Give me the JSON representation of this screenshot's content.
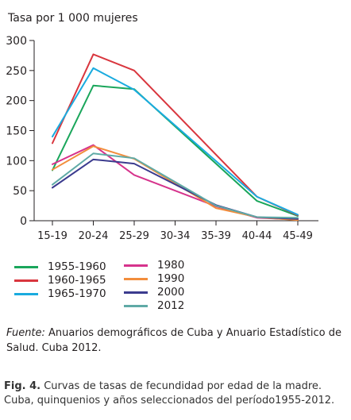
{
  "chart_data": {
    "type": "line",
    "ylabel": "Tasa por 1 000 mujeres",
    "xlabel": "",
    "categories": [
      "15-19",
      "20-24",
      "25-29",
      "30-34",
      "35-39",
      "40-44",
      "45-49"
    ],
    "ylim": [
      0,
      300
    ],
    "yticks": [
      0,
      50,
      100,
      150,
      200,
      250,
      300
    ],
    "grid": false,
    "legend_position": "bottom",
    "series": [
      {
        "name": "1955-1960",
        "color": "#1aa65b",
        "values": [
          84,
          225,
          219,
          null,
          null,
          33,
          8
        ]
      },
      {
        "name": "1960-1965",
        "color": "#d9363e",
        "values": [
          129,
          277,
          250,
          null,
          null,
          40,
          9
        ]
      },
      {
        "name": "1965-1970",
        "color": "#1aabdf",
        "values": [
          140,
          254,
          218,
          null,
          null,
          40,
          10
        ]
      },
      {
        "name": "1980",
        "color": "#d6338c",
        "values": [
          94,
          126,
          76,
          null,
          24,
          5,
          2
        ]
      },
      {
        "name": "1990",
        "color": "#f28d3c",
        "values": [
          85,
          124,
          103,
          null,
          21,
          6,
          1
        ]
      },
      {
        "name": "2000",
        "color": "#3b3b8e",
        "values": [
          55,
          102,
          95,
          null,
          26,
          6,
          3
        ]
      },
      {
        "name": "2012",
        "color": "#5faaa6",
        "values": [
          60,
          112,
          104,
          null,
          25,
          6,
          5
        ]
      }
    ]
  },
  "source": {
    "lead": "Fuente:",
    "text": " Anuarios demográficos de Cuba y Anuario Estadístico de Salud. Cuba 2012."
  },
  "caption": {
    "lead": "Fig. 4.",
    "text": " Curvas de tasas de fecundidad por edad de la madre. Cuba, quinquenios y años seleccionados del período1955-2012."
  }
}
